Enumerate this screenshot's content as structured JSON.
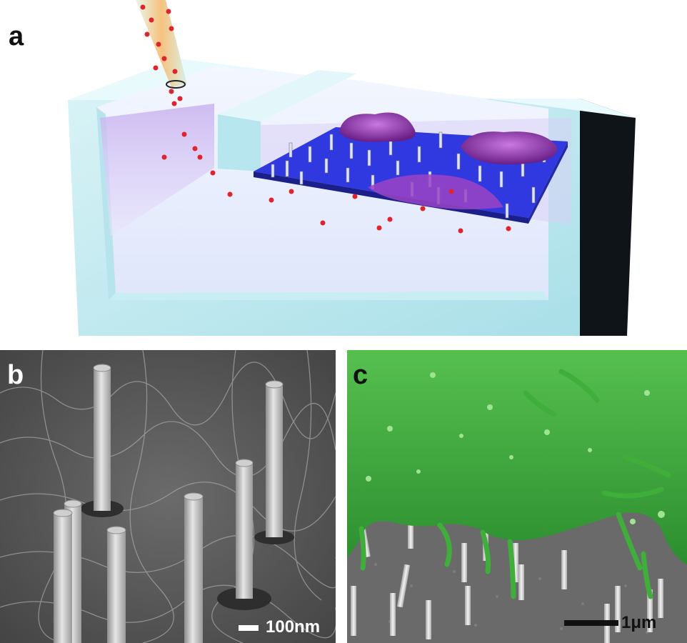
{
  "panels": {
    "a": {
      "label": "a"
    },
    "b": {
      "label": "b",
      "scale_bar": "100nm"
    },
    "c": {
      "label": "c",
      "scale_bar": "1μm"
    }
  },
  "colors": {
    "chamber": "#bfe9f0",
    "medium": "#d6c2f0",
    "substrate": "#2a30d8",
    "cell": "#9a35b8",
    "particle": "#e0242e",
    "pipette": "#f0b27a",
    "sem_gray": "#5a5a5a",
    "cell_green": "#3aa63a"
  }
}
